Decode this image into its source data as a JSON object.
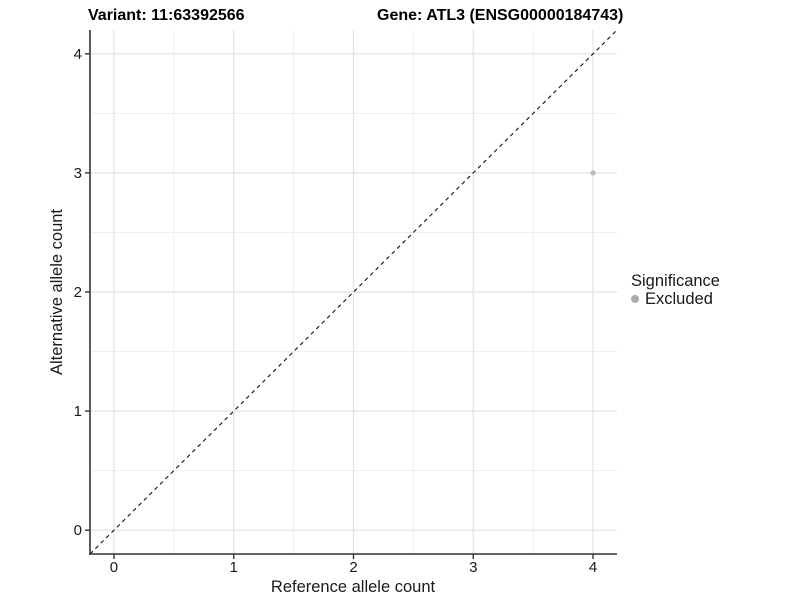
{
  "chart_data": {
    "type": "scatter",
    "titles": {
      "left": "Variant: 11:63392566",
      "right": "Gene: ATL3 (ENSG00000184743)"
    },
    "xlabel": "Reference allele count",
    "ylabel": "Alternative allele count",
    "xlim": [
      -0.2,
      4.2
    ],
    "ylim": [
      -0.2,
      4.2
    ],
    "xticks": [
      0,
      1,
      2,
      3,
      4
    ],
    "yticks": [
      0,
      1,
      2,
      3,
      4
    ],
    "minor_xticks": [
      0.5,
      1.5,
      2.5,
      3.5
    ],
    "minor_yticks": [
      0.5,
      1.5,
      2.5,
      3.5
    ],
    "grid": true,
    "identity_line": {
      "style": "dashed",
      "color": "#111111",
      "from": [
        -0.2,
        -0.2
      ],
      "to": [
        4.2,
        4.2
      ]
    },
    "series": [
      {
        "name": "Excluded",
        "color": "#b9b9b9",
        "point_radius": 2.6,
        "points": [
          {
            "x": 4,
            "y": 3
          }
        ]
      }
    ],
    "legend": {
      "title": "Significance",
      "position": "right",
      "items": [
        {
          "label": "Excluded",
          "color": "#acacac"
        }
      ]
    }
  },
  "colors": {
    "background": "#ffffff",
    "grid_major": "#e2e2e2",
    "grid_minor": "#efefef",
    "axis_line": "#333333",
    "tick_mark": "#333333",
    "tick_label": "#1a1a1a",
    "title_text": "#000000"
  }
}
